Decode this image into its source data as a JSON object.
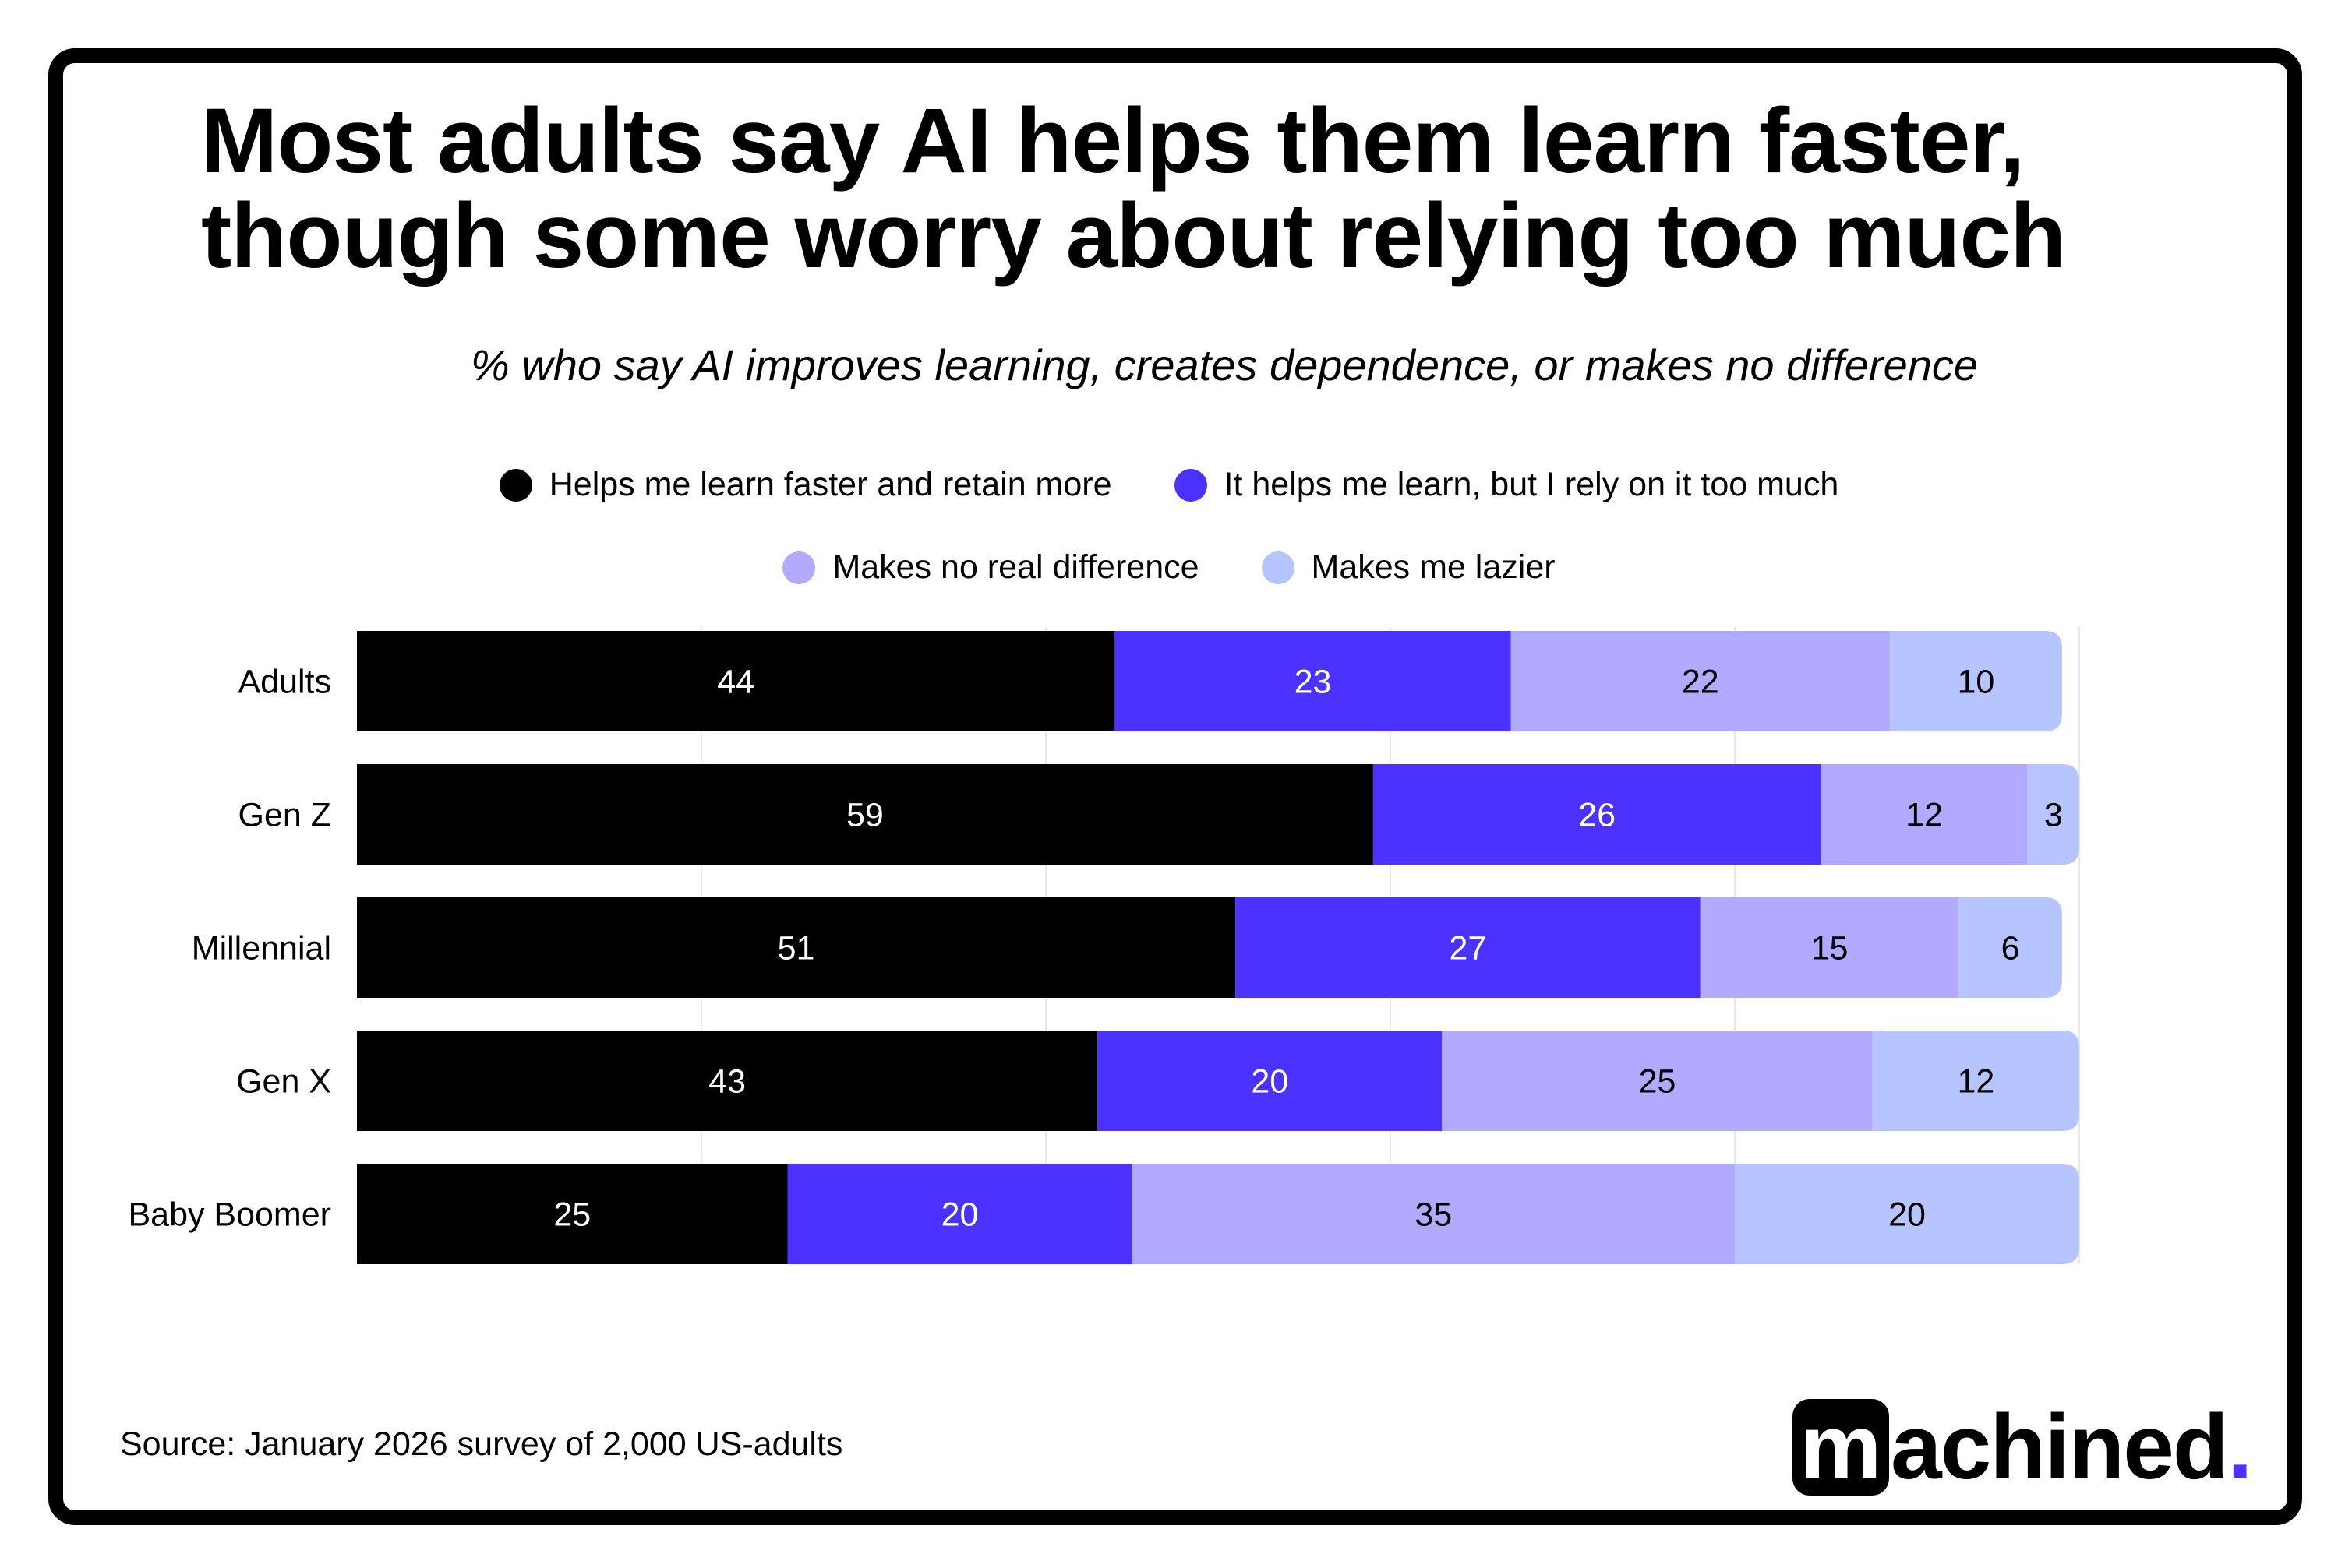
{
  "title_lines": [
    "Most adults say AI helps them learn faster,",
    "though some worry about relying too much"
  ],
  "subtitle": "% who say AI improves learning, creates dependence, or makes no difference",
  "source": "Source:  January 2026 survey of 2,000 US-adults",
  "logo": {
    "box_letter": "m",
    "rest": "achined",
    "dot": "."
  },
  "chart_data": {
    "type": "bar",
    "orientation": "horizontal-stacked",
    "title": "Most adults say AI helps them learn faster, though some worry about relying too much",
    "subtitle": "% who say AI improves learning, creates dependence, or makes no difference",
    "categories": [
      "Adults",
      "Gen Z",
      "Millennial",
      "Gen X",
      "Baby Boomer"
    ],
    "series": [
      {
        "name": "Helps me learn faster and retain more",
        "color": "#000000",
        "label_color": "#ffffff",
        "values": [
          44,
          59,
          51,
          43,
          25
        ]
      },
      {
        "name": "It helps me learn, but I rely on it too much",
        "color": "#4b32ff",
        "label_color": "#ffffff",
        "values": [
          23,
          26,
          27,
          20,
          20
        ]
      },
      {
        "name": "Makes no real difference",
        "color": "#b1aaff",
        "label_color": "#000000",
        "values": [
          22,
          12,
          15,
          25,
          35
        ]
      },
      {
        "name": "Makes me lazier",
        "color": "#b6c5ff",
        "label_color": "#000000",
        "values": [
          10,
          3,
          6,
          12,
          20
        ]
      }
    ],
    "xlim": [
      0,
      100
    ],
    "gridlines": [
      20,
      40,
      60,
      80,
      100
    ],
    "grid": true,
    "legend_placement": "top"
  }
}
